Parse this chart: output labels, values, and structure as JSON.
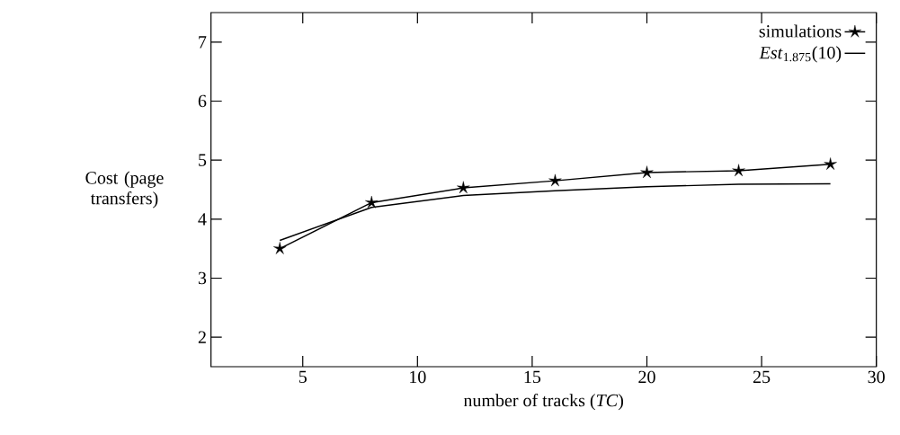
{
  "chart_data": {
    "type": "line",
    "xlabel": "number of tracks (*TC*)",
    "ylabel": "Cost (page transfers)",
    "x": [
      4,
      8,
      12,
      16,
      20,
      24,
      28
    ],
    "series": [
      {
        "name": "simulations",
        "color": "#000000",
        "marker": "star",
        "values": [
          3.5,
          4.28,
          4.53,
          4.65,
          4.79,
          4.82,
          4.93
        ]
      },
      {
        "name": "*Est*$_{1.875}$(10)",
        "color": "#000000",
        "marker": "none",
        "values": [
          3.64,
          4.2,
          4.4,
          4.48,
          4.55,
          4.59,
          4.6
        ]
      }
    ],
    "xlim": [
      1,
      30
    ],
    "ylim": [
      1.5,
      7.5
    ],
    "xticks": [
      5,
      10,
      15,
      20,
      25,
      30
    ],
    "yticks": [
      2,
      3,
      4,
      5,
      6,
      7
    ],
    "grid": false,
    "legend": "top right",
    "line_style": "solid"
  }
}
